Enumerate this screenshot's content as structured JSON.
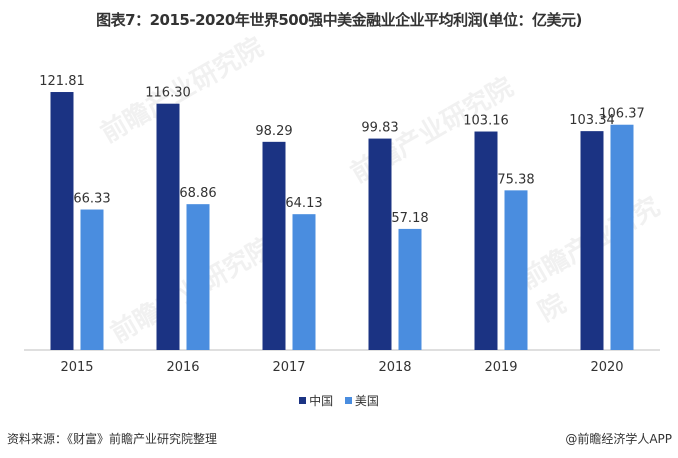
{
  "chart_data": {
    "type": "bar",
    "title": "图表7：2015-2020年世界500强中美金融业企业平均利润(单位：亿美元)",
    "categories": [
      "2015",
      "2016",
      "2017",
      "2018",
      "2019",
      "2020"
    ],
    "series": [
      {
        "name": "中国",
        "color": "#1b3383",
        "values": [
          121.81,
          116.3,
          98.29,
          99.83,
          103.16,
          103.34
        ]
      },
      {
        "name": "美国",
        "color": "#4a8ddf",
        "values": [
          66.33,
          68.86,
          64.13,
          57.18,
          75.38,
          106.37
        ]
      }
    ],
    "ylim": [
      0,
      140
    ],
    "grid": false,
    "legend": "bottom",
    "xlabel": "",
    "ylabel": ""
  },
  "footer": {
    "source": "资料来源：《财富》前瞻产业研究院整理",
    "credit": "@前瞻经济学人APP"
  },
  "watermark": "前瞻产业研究院"
}
